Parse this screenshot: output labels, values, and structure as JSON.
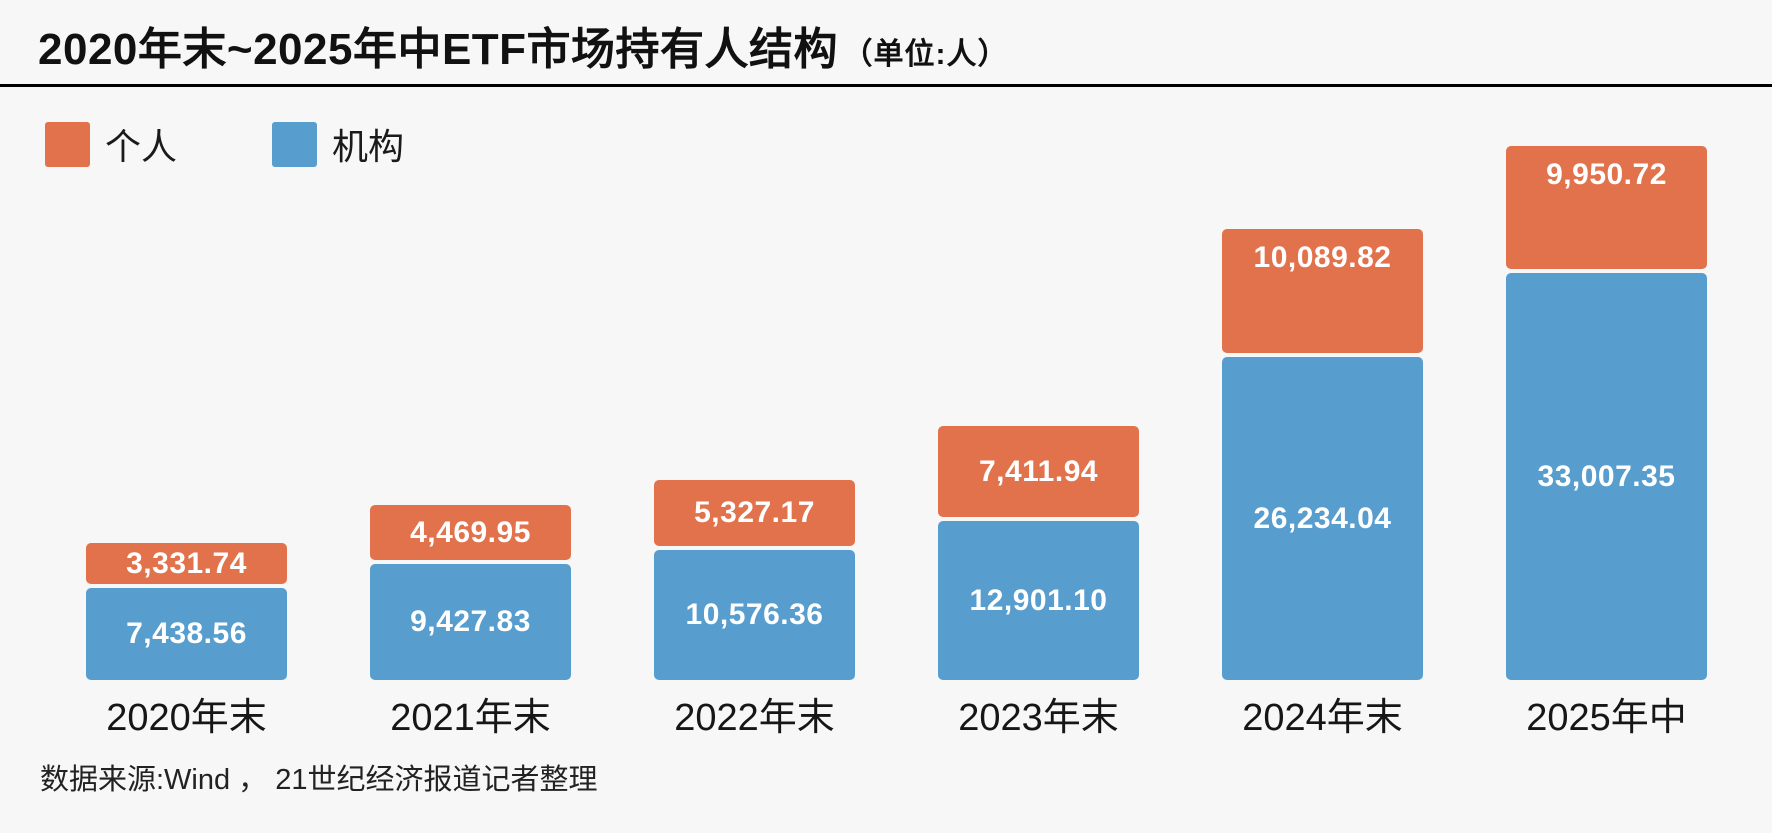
{
  "title": {
    "main": "2020年末~2025年中ETF市场持有人结构",
    "unit": "（单位:人）"
  },
  "source": "数据来源:Wind ， 21世纪经济报道记者整理",
  "colors": {
    "individual": "#e2724c",
    "institution": "#579dce",
    "background": "#f7f7f7",
    "bar_label_text": "#ffffff",
    "title_text": "#111111"
  },
  "chart_data": {
    "type": "bar",
    "stacked": true,
    "title": "2020年末~2025年中ETF市场持有人结构（单位:人）",
    "value_unit": "人",
    "categories": [
      "2020年末",
      "2021年末",
      "2022年末",
      "2023年末",
      "2024年末",
      "2025年中"
    ],
    "series": [
      {
        "name": "个人",
        "color": "#e2724c",
        "values": [
          3331.74,
          4469.95,
          5327.17,
          7411.94,
          10089.82,
          9950.72
        ],
        "labels": [
          "3,331.74",
          "4,469.95",
          "5,327.17",
          "7,411.94",
          "10,089.82",
          "9,950.72"
        ]
      },
      {
        "name": "机构",
        "color": "#579dce",
        "values": [
          7438.56,
          9427.83,
          10576.36,
          12901.1,
          26234.04,
          33007.35
        ],
        "labels": [
          "7,438.56",
          "9,427.83",
          "10,576.36",
          "12,901.10",
          "26,234.04",
          "33,007.35"
        ]
      }
    ],
    "legend_position": "top-left",
    "grid": false,
    "axis": {
      "x_labels_visible": true,
      "y_axis_visible": false
    },
    "data_labels": "inside-white-bold"
  }
}
